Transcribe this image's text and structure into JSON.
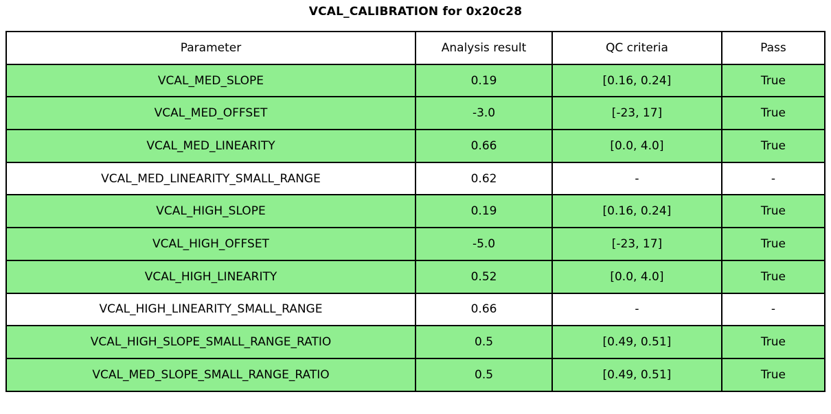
{
  "title": "VCAL_CALIBRATION for 0x20c28",
  "colors": {
    "pass_row_green": "#90EE90",
    "neutral_row_white": "#FFFFFF",
    "border_black": "#000000",
    "text_black": "#000000"
  },
  "chart_data": {
    "type": "table",
    "title": "VCAL_CALIBRATION for 0x20c28",
    "columns": [
      "Parameter",
      "Analysis result",
      "QC criteria",
      "Pass"
    ],
    "rows": [
      {
        "cells": [
          "VCAL_MED_SLOPE",
          "0.19",
          "[0.16, 0.24]",
          "True"
        ],
        "pass": true
      },
      {
        "cells": [
          "VCAL_MED_OFFSET",
          "-3.0",
          "[-23, 17]",
          "True"
        ],
        "pass": true
      },
      {
        "cells": [
          "VCAL_MED_LINEARITY",
          "0.66",
          "[0.0, 4.0]",
          "True"
        ],
        "pass": true
      },
      {
        "cells": [
          "VCAL_MED_LINEARITY_SMALL_RANGE",
          "0.62",
          "-",
          "-"
        ],
        "pass": false
      },
      {
        "cells": [
          "VCAL_HIGH_SLOPE",
          "0.19",
          "[0.16, 0.24]",
          "True"
        ],
        "pass": true
      },
      {
        "cells": [
          "VCAL_HIGH_OFFSET",
          "-5.0",
          "[-23, 17]",
          "True"
        ],
        "pass": true
      },
      {
        "cells": [
          "VCAL_HIGH_LINEARITY",
          "0.52",
          "[0.0, 4.0]",
          "True"
        ],
        "pass": true
      },
      {
        "cells": [
          "VCAL_HIGH_LINEARITY_SMALL_RANGE",
          "0.66",
          "-",
          "-"
        ],
        "pass": false
      },
      {
        "cells": [
          "VCAL_HIGH_SLOPE_SMALL_RANGE_RATIO",
          "0.5",
          "[0.49, 0.51]",
          "True"
        ],
        "pass": true
      },
      {
        "cells": [
          "VCAL_MED_SLOPE_SMALL_RANGE_RATIO",
          "0.5",
          "[0.49, 0.51]",
          "True"
        ],
        "pass": true
      }
    ],
    "legend_position": "none",
    "grid": "table-borders"
  }
}
